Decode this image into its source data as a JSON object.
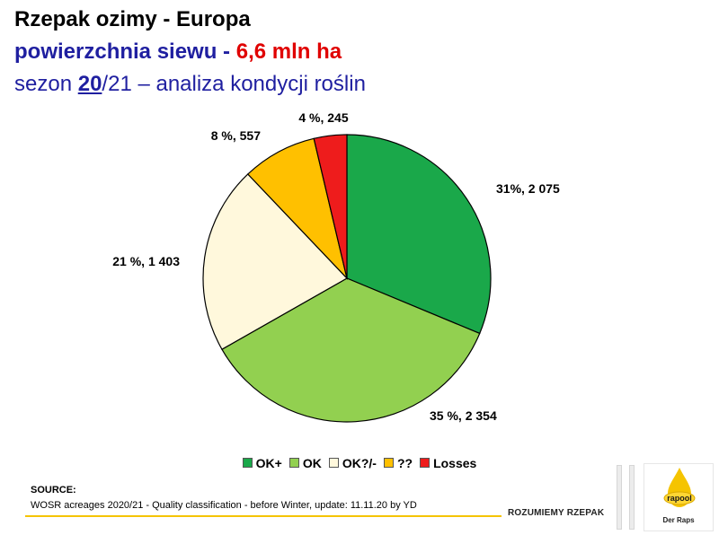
{
  "header": {
    "title": "Rzepak ozimy - Europa",
    "subtitle_part1": "powierzchnia siewu - ",
    "subtitle_highlight": "6,6 mln ha",
    "season_prefix": "sezon ",
    "season_year": "20",
    "season_suffix": "/21 – analiza kondycji roślin"
  },
  "chart_data": {
    "type": "pie",
    "start_angle_deg": 0,
    "direction": "clockwise",
    "slices": [
      {
        "name": "OK+",
        "percent": 31,
        "value": 2075,
        "label": "31%, 2 075",
        "color": "#1aa84a"
      },
      {
        "name": "OK",
        "percent": 35,
        "value": 2354,
        "label": "35 %, 2 354",
        "color": "#92d050"
      },
      {
        "name": "OK?/-",
        "percent": 21,
        "value": 1403,
        "label": "21 %, 1 403",
        "color": "#fff8dc"
      },
      {
        "name": "??",
        "percent": 8,
        "value": 557,
        "label": "8 %, 557",
        "color": "#ffc000"
      },
      {
        "name": "Losses",
        "percent": 4,
        "value": 245,
        "label": "4 %, 245",
        "color": "#ee1c1c"
      }
    ],
    "legend_position": "bottom"
  },
  "source": {
    "heading": "SOURCE:",
    "text": "WOSR acreages 2020/21 - Quality classification - before Winter, update: 11.11.20 by YD"
  },
  "footer": {
    "slogan": "ROZUMIEMY RZEPAK",
    "logo_name": "rapool",
    "logo_tagline": "Der Raps"
  }
}
